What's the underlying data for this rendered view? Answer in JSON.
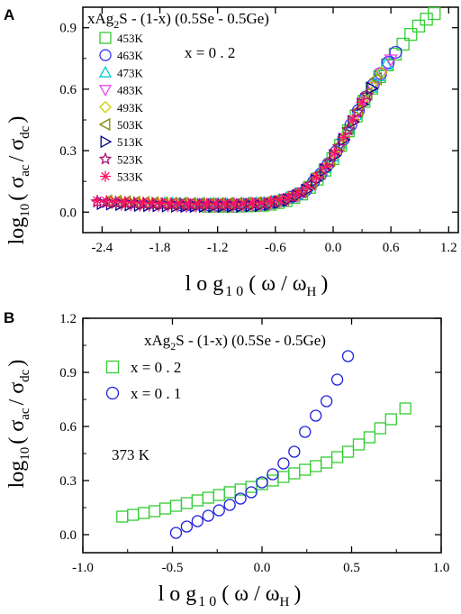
{
  "chart_data": [
    {
      "panel_label": "A",
      "type": "scatter",
      "title_parts": [
        "xAg",
        "2",
        "S - (1-x) (0.5Se - 0.5Ge)"
      ],
      "annotation": "x = 0 . 2",
      "xlabel_parts": [
        "l o g",
        "1 0",
        "( ω / ω",
        "H",
        ")"
      ],
      "ylabel_parts": [
        "log",
        "10",
        "( σ",
        "ac",
        "/ σ",
        "dc",
        ")"
      ],
      "xlim": [
        -2.6,
        1.3
      ],
      "ylim": [
        -0.1,
        1.0
      ],
      "xticks": [
        -2.4,
        -1.8,
        -1.2,
        -0.6,
        0.0,
        0.6,
        1.2
      ],
      "xtick_labels": [
        "-2.4",
        "-1.8",
        "-1.2",
        "-0.6",
        "0.0",
        "0.6",
        "1.2"
      ],
      "yticks": [
        0.0,
        0.3,
        0.6,
        0.9
      ],
      "ytick_labels": [
        "0.0",
        "0.3",
        "0.6",
        "0.9"
      ],
      "legend_position": "top-left",
      "series": [
        {
          "name": "453K",
          "marker": "square",
          "color": "#33cc33",
          "xmin": -1.3,
          "xmax": 1.05
        },
        {
          "name": "463K",
          "marker": "circle",
          "color": "#3333ff",
          "xmin": -1.6,
          "xmax": 0.65
        },
        {
          "name": "473K",
          "marker": "triangle-up",
          "color": "#00cccc",
          "xmin": -1.75,
          "xmax": 0.55
        },
        {
          "name": "483K",
          "marker": "triangle-down",
          "color": "#ee44ee",
          "xmin": -2.2,
          "xmax": 0.6
        },
        {
          "name": "493K",
          "marker": "diamond",
          "color": "#cccc00",
          "xmin": -2.3,
          "xmax": 0.5
        },
        {
          "name": "503K",
          "marker": "triangle-left",
          "color": "#888800",
          "xmin": -2.35,
          "xmax": 0.45
        },
        {
          "name": "513K",
          "marker": "triangle-right",
          "color": "#000088",
          "xmin": -2.4,
          "xmax": 0.4
        },
        {
          "name": "523K",
          "marker": "star",
          "color": "#aa1177",
          "xmin": -2.45,
          "xmax": 0.35
        },
        {
          "name": "533K",
          "marker": "asterisk",
          "color": "#ff1166",
          "xmin": -2.45,
          "xmax": 0.3
        }
      ],
      "master_curve": {
        "x": [
          -2.45,
          -2.0,
          -1.5,
          -1.0,
          -0.7,
          -0.5,
          -0.3,
          -0.1,
          0.0,
          0.1,
          0.2,
          0.3,
          0.4,
          0.5,
          0.6,
          0.7,
          0.8,
          0.9,
          1.0,
          1.05
        ],
        "y": [
          0.05,
          0.04,
          0.035,
          0.035,
          0.04,
          0.06,
          0.1,
          0.2,
          0.27,
          0.35,
          0.44,
          0.53,
          0.61,
          0.68,
          0.75,
          0.81,
          0.87,
          0.92,
          0.96,
          0.975
        ]
      }
    },
    {
      "panel_label": "B",
      "type": "scatter",
      "title_parts": [
        "xAg",
        "2",
        "S - (1-x) (0.5Se - 0.5Ge)"
      ],
      "annotation": "373 K",
      "xlabel_parts": [
        "l o g",
        "1 0",
        "( ω / ω",
        "H",
        ")"
      ],
      "ylabel_parts": [
        "log",
        "10",
        "( σ",
        "ac",
        "/ σ",
        "dc",
        ")"
      ],
      "xlim": [
        -1.0,
        1.0
      ],
      "ylim": [
        -0.1,
        1.2
      ],
      "xticks": [
        -1.0,
        -0.5,
        0.0,
        0.5,
        1.0
      ],
      "xtick_labels": [
        "-1.0",
        "-0.5",
        "0.0",
        "0.5",
        "1.0"
      ],
      "yticks": [
        0.0,
        0.3,
        0.6,
        0.9,
        1.2
      ],
      "ytick_labels": [
        "0.0",
        "0.3",
        "0.6",
        "0.9",
        "1.2"
      ],
      "legend_position": "top-left",
      "series": [
        {
          "name": "x = 0 . 2",
          "marker": "square",
          "color": "#33cc33",
          "x": [
            -0.78,
            -0.72,
            -0.66,
            -0.6,
            -0.54,
            -0.48,
            -0.42,
            -0.36,
            -0.3,
            -0.24,
            -0.18,
            -0.12,
            -0.06,
            0.0,
            0.06,
            0.12,
            0.18,
            0.24,
            0.3,
            0.36,
            0.42,
            0.48,
            0.54,
            0.6,
            0.66,
            0.72,
            0.8
          ],
          "y": [
            0.1,
            0.11,
            0.12,
            0.13,
            0.145,
            0.16,
            0.175,
            0.19,
            0.205,
            0.22,
            0.235,
            0.25,
            0.265,
            0.28,
            0.3,
            0.32,
            0.34,
            0.36,
            0.38,
            0.4,
            0.43,
            0.46,
            0.5,
            0.54,
            0.59,
            0.64,
            0.7
          ]
        },
        {
          "name": "x = 0 . 1",
          "marker": "circle",
          "color": "#1f1fdd",
          "x": [
            -0.48,
            -0.42,
            -0.36,
            -0.3,
            -0.24,
            -0.18,
            -0.12,
            -0.06,
            0.0,
            0.06,
            0.12,
            0.18,
            0.24,
            0.3,
            0.36,
            0.42,
            0.48
          ],
          "y": [
            0.01,
            0.045,
            0.075,
            0.105,
            0.135,
            0.165,
            0.2,
            0.235,
            0.29,
            0.335,
            0.395,
            0.46,
            0.57,
            0.66,
            0.74,
            0.86,
            0.99
          ]
        }
      ]
    }
  ]
}
